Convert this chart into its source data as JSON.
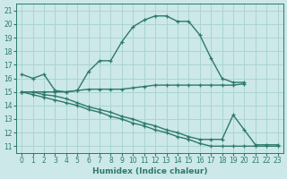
{
  "xlabel": "Humidex (Indice chaleur)",
  "bg_color": "#cce8e8",
  "grid_color": "#aad4d4",
  "line_color": "#2d7a6a",
  "xlim": [
    -0.5,
    23.5
  ],
  "ylim": [
    10.5,
    21.5
  ],
  "xticks": [
    0,
    1,
    2,
    3,
    4,
    5,
    6,
    7,
    8,
    9,
    10,
    11,
    12,
    13,
    14,
    15,
    16,
    17,
    18,
    19,
    20,
    21,
    22,
    23
  ],
  "yticks": [
    11,
    12,
    13,
    14,
    15,
    16,
    17,
    18,
    19,
    20,
    21
  ],
  "curve1_x": [
    0,
    1,
    2,
    3,
    4,
    5,
    6,
    7,
    8,
    9,
    10,
    11,
    12,
    13,
    14,
    15,
    16,
    17,
    18,
    19,
    20
  ],
  "curve1_y": [
    16.3,
    16.0,
    16.3,
    15.1,
    15.0,
    15.1,
    16.5,
    17.3,
    17.3,
    18.7,
    19.8,
    20.3,
    20.6,
    20.6,
    20.2,
    20.2,
    19.2,
    17.5,
    16.0,
    15.7,
    15.7
  ],
  "curve2_x": [
    0,
    1,
    2,
    3,
    4,
    5,
    6,
    7,
    8,
    9,
    10,
    11,
    12,
    13,
    14,
    15,
    16,
    17,
    18,
    19,
    20
  ],
  "curve2_y": [
    15.0,
    15.0,
    15.0,
    15.0,
    15.0,
    15.1,
    15.2,
    15.2,
    15.2,
    15.2,
    15.3,
    15.4,
    15.5,
    15.5,
    15.5,
    15.5,
    15.5,
    15.5,
    15.5,
    15.5,
    15.6
  ],
  "curve3_x": [
    0,
    1,
    2,
    3,
    4,
    5,
    6,
    7,
    8,
    9,
    10,
    11,
    12,
    13,
    14,
    15,
    16,
    17,
    18,
    19,
    20,
    21,
    22,
    23
  ],
  "curve3_y": [
    15.0,
    15.0,
    14.8,
    14.7,
    14.5,
    14.2,
    13.9,
    13.7,
    13.5,
    13.2,
    13.0,
    12.7,
    12.5,
    12.2,
    12.0,
    11.7,
    11.5,
    11.5,
    11.5,
    13.3,
    12.2,
    11.1,
    11.1,
    11.1
  ],
  "curve4_x": [
    0,
    1,
    2,
    3,
    4,
    5,
    6,
    7,
    8,
    9,
    10,
    11,
    12,
    13,
    14,
    15,
    16,
    17,
    18,
    19,
    20,
    21,
    22,
    23
  ],
  "curve4_y": [
    15.0,
    14.8,
    14.6,
    14.4,
    14.2,
    14.0,
    13.7,
    13.5,
    13.2,
    13.0,
    12.7,
    12.5,
    12.2,
    12.0,
    11.7,
    11.5,
    11.2,
    11.0,
    11.0,
    11.0,
    11.0,
    11.0,
    11.0,
    11.0
  ]
}
